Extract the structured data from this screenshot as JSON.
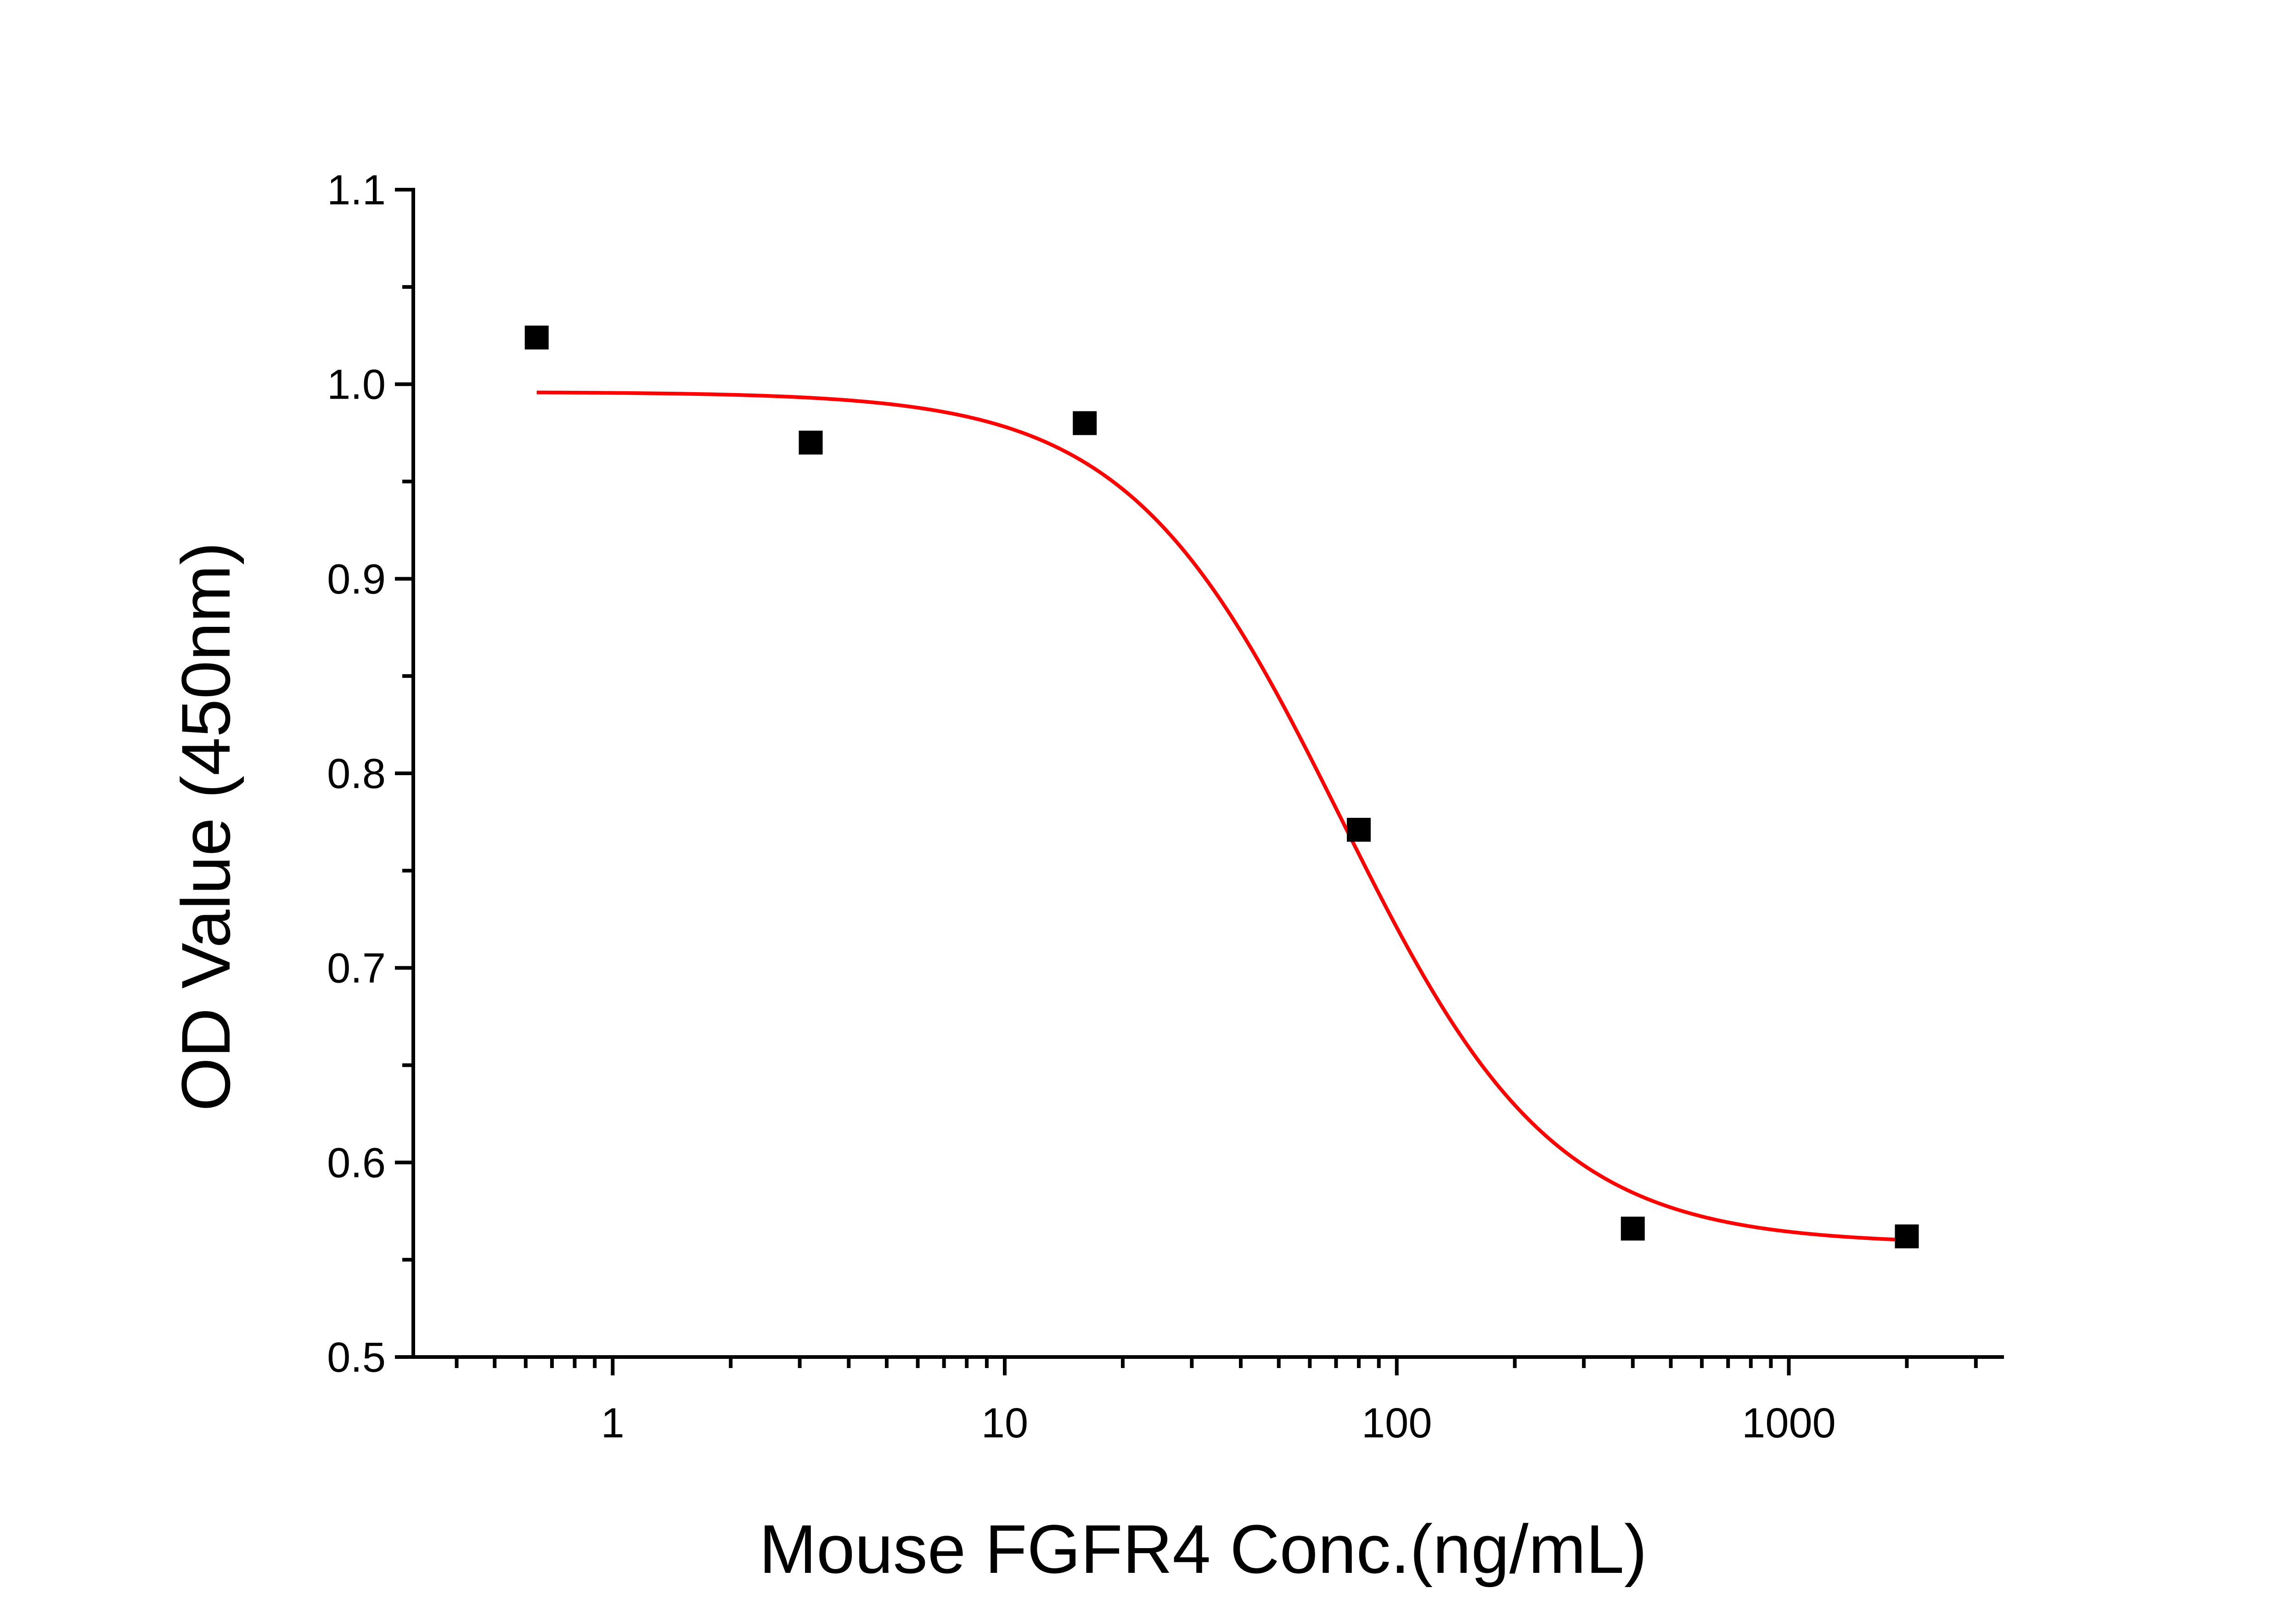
{
  "chart_data": {
    "type": "scatter",
    "title": "",
    "xlabel": "Mouse FGFR4 Conc.(ng/mL)",
    "ylabel": "OD Value (450nm)",
    "x_scale": "log",
    "xlim": [
      0.31,
      3500
    ],
    "ylim": [
      0.5,
      1.1
    ],
    "x_ticks": [
      1,
      10,
      100,
      1000
    ],
    "x_tick_labels": [
      "1",
      "10",
      "100",
      "1000"
    ],
    "y_ticks": [
      0.5,
      0.6,
      0.7,
      0.8,
      0.9,
      1.0,
      1.1
    ],
    "y_tick_labels": [
      "0.5",
      "0.6",
      "0.7",
      "0.8",
      "0.9",
      "1.0",
      "1.1"
    ],
    "grid": false,
    "legend": "none",
    "series": [
      {
        "kind": "points",
        "marker": "square",
        "color": "#000000",
        "x": [
          0.64,
          3.2,
          16,
          80,
          400,
          2000
        ],
        "y": [
          1.024,
          0.97,
          0.98,
          0.771,
          0.566,
          0.562
        ]
      },
      {
        "kind": "fit",
        "model": "4PL",
        "color": "#ff0000",
        "bottom": 0.558,
        "top": 0.996,
        "ec50": 72,
        "hill": 1.6,
        "x_range": [
          0.64,
          2000
        ]
      }
    ]
  }
}
